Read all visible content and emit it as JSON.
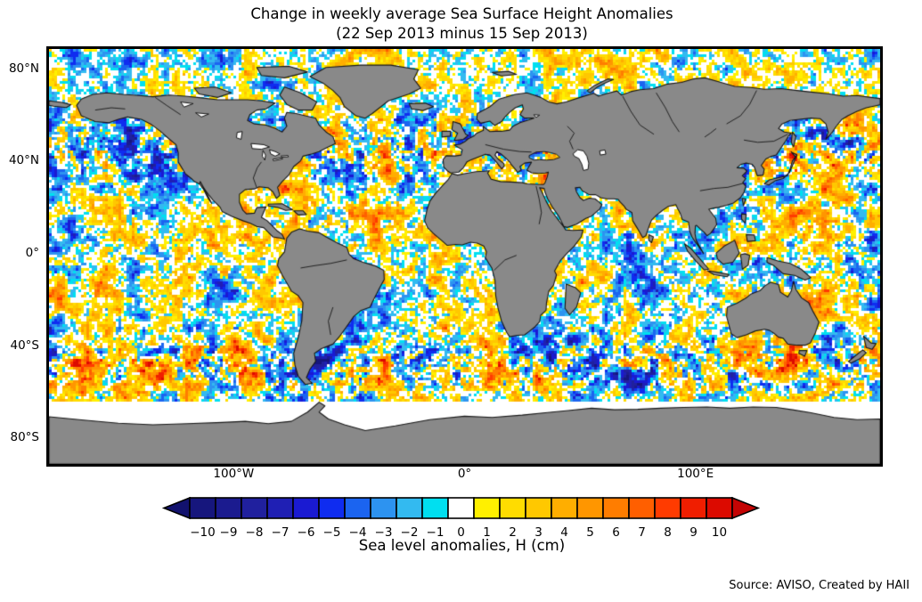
{
  "title": {
    "line1": "Change in weekly average Sea Surface Height Anomalies",
    "line2": "(22 Sep 2013 minus 15 Sep 2013)"
  },
  "source_note": "Source: AVISO, Created by HAII",
  "map": {
    "background": "#ffffff",
    "land_color": "#898989",
    "coastline_color": "#161616",
    "no_data_color": "#ffffff",
    "border_color": "#000000",
    "lat_ticks": [
      {
        "label": "80°N",
        "lat": 80
      },
      {
        "label": "40°N",
        "lat": 40
      },
      {
        "label": "0°",
        "lat": 0
      },
      {
        "label": "40°S",
        "lat": -40
      },
      {
        "label": "80°S",
        "lat": -80
      }
    ],
    "lon_ticks": [
      {
        "label": "100°W",
        "lon": -100
      },
      {
        "label": "0°",
        "lon": 0
      },
      {
        "label": "100°E",
        "lon": 100
      }
    ]
  },
  "chart_data": {
    "type": "heatmap",
    "title": "Change in weekly average Sea Surface Height Anomalies",
    "subtitle": "(22 Sep 2013 minus 15 Sep 2013)",
    "projection": "equirectangular",
    "lon_range": [
      -180,
      180
    ],
    "lat_range": [
      -90,
      90
    ],
    "field": "difference of weekly average sea surface height anomalies (22 Sep 2013 minus 15 Sep 2013)",
    "units": "cm",
    "value_range": [
      -10,
      10
    ],
    "data_coverage": "global ocean from 62S to 90N; near-zero and unobserved cells white; land masked gray; Caspian, Aral and Great Lakes shown white (no data)",
    "colorbar": {
      "label": "Sea level anomalies, H (cm)",
      "orientation": "horizontal",
      "ticks": [
        -10,
        -9,
        -8,
        -7,
        -6,
        -5,
        -4,
        -3,
        -2,
        -1,
        0,
        1,
        2,
        3,
        4,
        5,
        6,
        7,
        8,
        9,
        10
      ],
      "cell_colors": [
        "#16167d",
        "#1b1b8f",
        "#20209e",
        "#1f1fb4",
        "#1a1ad2",
        "#0f2cf0",
        "#1b64f0",
        "#2d93f0",
        "#33baf0",
        "#00dff0",
        "#ffffff",
        "#fff000",
        "#ffdc00",
        "#ffc800",
        "#ffae00",
        "#ff9600",
        "#ff7d00",
        "#ff5f00",
        "#ff3b00",
        "#f01e00",
        "#dc0a00"
      ],
      "under_arrow_color": "#12126e",
      "over_arrow_color": "#c40404"
    }
  }
}
